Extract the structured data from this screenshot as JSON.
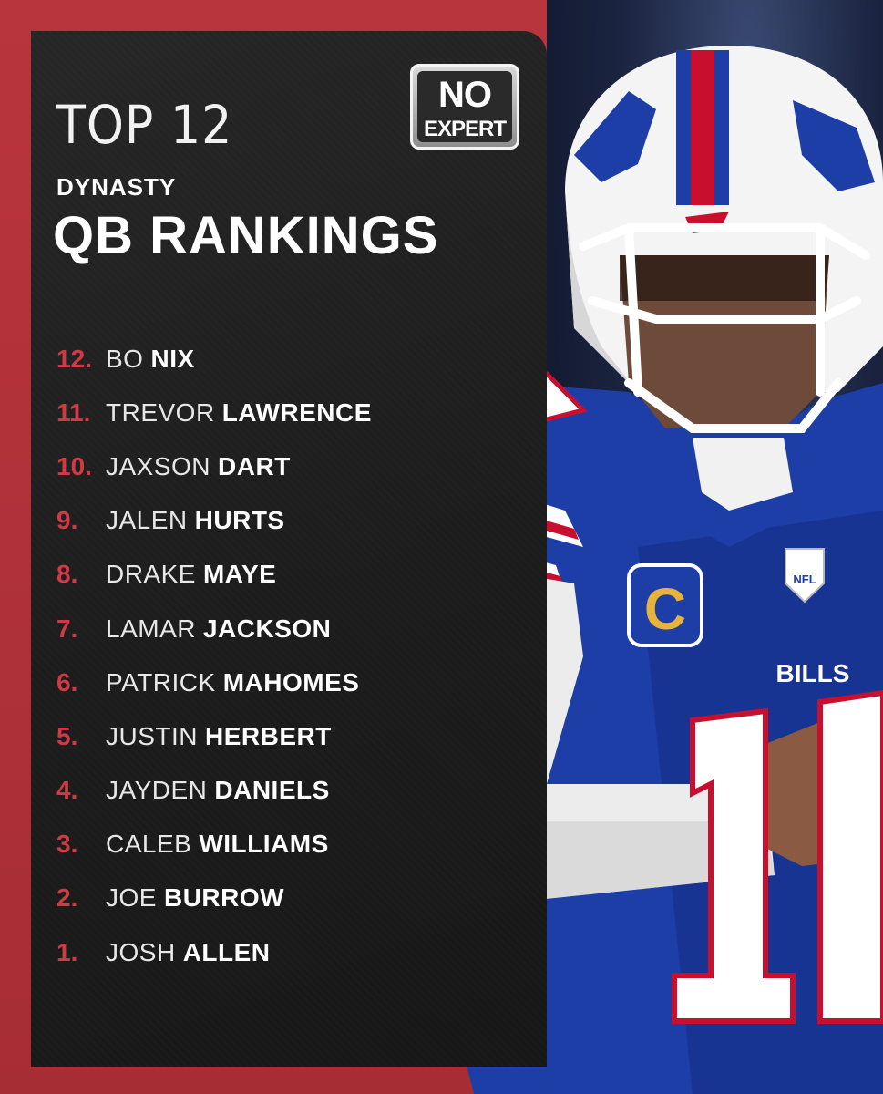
{
  "header": {
    "title_line1": "TOP 12",
    "title_line2": "DYNASTY",
    "title_line3": "QB RANKINGS"
  },
  "logo": {
    "line1": "NO",
    "line2": "EXPERT"
  },
  "rankings": [
    {
      "rank": "12.",
      "first": "BO",
      "last": "NIX"
    },
    {
      "rank": "11.",
      "first": "TREVOR",
      "last": "LAWRENCE"
    },
    {
      "rank": "10.",
      "first": "JAXSON",
      "last": "DART"
    },
    {
      "rank": "9.",
      "first": "JALEN",
      "last": "HURTS"
    },
    {
      "rank": "8.",
      "first": "DRAKE",
      "last": "MAYE"
    },
    {
      "rank": "7.",
      "first": "LAMAR",
      "last": "JACKSON"
    },
    {
      "rank": "6.",
      "first": "PATRICK",
      "last": "MAHOMES"
    },
    {
      "rank": "5.",
      "first": "JUSTIN",
      "last": "HERBERT"
    },
    {
      "rank": "4.",
      "first": "JAYDEN",
      "last": "DANIELS"
    },
    {
      "rank": "3.",
      "first": "CALEB",
      "last": "WILLIAMS"
    },
    {
      "rank": "2.",
      "first": "JOE",
      "last": "BURROW"
    },
    {
      "rank": "1.",
      "first": "JOSH",
      "last": "ALLEN"
    }
  ],
  "photo": {
    "jersey_text": "BILLS",
    "captain_patch": "C",
    "league_badge": "NFL"
  },
  "colors": {
    "frame_red": "#b5323a",
    "panel_dark": "#1e1e1e",
    "rank_red": "#d13a45",
    "jersey_blue": "#1d3ea6"
  }
}
